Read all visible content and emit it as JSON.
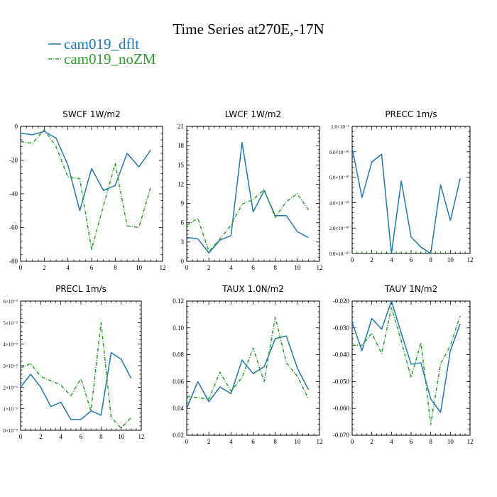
{
  "figure": {
    "title": "Time Series at270E,-17N",
    "legend": [
      {
        "label": "cam019_dflt",
        "color": "#1f77b4",
        "dash": ""
      },
      {
        "label": "cam019_noZM",
        "color": "#2ca02c",
        "dash": "5,2,1,2"
      }
    ]
  },
  "chart_data": [
    {
      "type": "line",
      "title": "SWCF  1W/m2",
      "xlim": [
        0,
        12
      ],
      "xticks": [
        0,
        2,
        4,
        6,
        8,
        10,
        12
      ],
      "ylim": [
        -80,
        0
      ],
      "yticks": [
        0,
        -20,
        -40,
        -60,
        -80
      ],
      "ytick_labels": [
        "0",
        "-20",
        "-40",
        "-60",
        "-80"
      ],
      "x": [
        0,
        1,
        2,
        3,
        4,
        5,
        6,
        7,
        8,
        9,
        10,
        11
      ],
      "series": [
        {
          "name": "cam019_dflt",
          "values": [
            -4,
            -5,
            -3,
            -7,
            -23,
            -50,
            -25,
            -38,
            -35,
            -16,
            -24,
            -14
          ]
        },
        {
          "name": "cam019_noZM",
          "values": [
            -9,
            -10,
            -2,
            -12,
            -30,
            -31,
            -73,
            -47,
            -22,
            -59,
            -60,
            -36
          ]
        }
      ]
    },
    {
      "type": "line",
      "title": "LWCF  1W/m2",
      "xlim": [
        0,
        12
      ],
      "xticks": [
        0,
        2,
        4,
        6,
        8,
        10,
        12
      ],
      "ylim": [
        0,
        21
      ],
      "yticks": [
        0,
        3,
        6,
        9,
        12,
        15,
        18,
        21
      ],
      "ytick_labels": [
        "0",
        "3",
        "6",
        "9",
        "12",
        "15",
        "18",
        "21"
      ],
      "x": [
        0,
        1,
        2,
        3,
        4,
        5,
        6,
        7,
        8,
        9,
        10,
        11
      ],
      "series": [
        {
          "name": "cam019_dflt",
          "values": [
            3.7,
            3.5,
            1.3,
            3.3,
            4.0,
            18.5,
            7.7,
            11.0,
            7.1,
            7.1,
            4.6,
            3.7
          ]
        },
        {
          "name": "cam019_noZM",
          "values": [
            5.6,
            6.7,
            1.5,
            3.5,
            5.6,
            8.9,
            9.6,
            11.2,
            6.8,
            9.3,
            10.5,
            8.0
          ]
        }
      ]
    },
    {
      "type": "line",
      "title": "PRECC   1m/s",
      "xlim": [
        0,
        12
      ],
      "xticks": [
        0,
        2,
        4,
        6,
        8,
        10,
        12
      ],
      "ylim": [
        0,
        1e-09
      ],
      "yticks": [
        0,
        2e-10,
        4e-10,
        6e-10,
        8e-10,
        1e-09
      ],
      "ytick_labels": [
        "0.0×10⁻¹⁰",
        "2.0×10⁻¹⁰",
        "4.0×10⁻¹⁰",
        "6.0×10⁻¹⁰",
        "8.0×10⁻¹⁰",
        "1.0×10⁻⁹"
      ],
      "x": [
        0,
        1,
        2,
        3,
        4,
        5,
        6,
        7,
        8,
        9,
        10,
        11
      ],
      "series": [
        {
          "name": "cam019_dflt",
          "values": [
            8.3e-10,
            4.4e-10,
            7.2e-10,
            7.8e-10,
            0,
            5.7e-10,
            1.3e-10,
            5e-11,
            0,
            5.4e-10,
            2.6e-10,
            5.9e-10
          ]
        },
        {
          "name": "cam019_noZM",
          "values": [
            0,
            0,
            0,
            0,
            0,
            0,
            0,
            0,
            0,
            0,
            0,
            0
          ]
        }
      ]
    },
    {
      "type": "line",
      "title": "PRECL   1m/s",
      "xlim": [
        0,
        12
      ],
      "xticks": [
        0,
        2,
        4,
        6,
        8,
        10,
        12
      ],
      "ylim": [
        0,
        6
      ],
      "yticks": [
        0,
        1,
        2,
        3,
        4,
        5,
        6
      ],
      "ytick_labels": [
        "0×10⁻⁹",
        "1×10⁻⁹",
        "2×10⁻⁹",
        "3×10⁻⁹",
        "4×10⁻⁹",
        "5×10⁻⁹",
        "6×10⁻⁹"
      ],
      "x": [
        0,
        1,
        2,
        3,
        4,
        5,
        6,
        7,
        8,
        9,
        10,
        11
      ],
      "series": [
        {
          "name": "cam019_dflt",
          "values": [
            2.0,
            2.6,
            2.0,
            1.1,
            1.3,
            0.5,
            0.5,
            0.9,
            0.7,
            3.6,
            3.3,
            2.4
          ]
        },
        {
          "name": "cam019_noZM",
          "values": [
            2.9,
            3.1,
            2.5,
            2.3,
            2.1,
            1.6,
            2.4,
            0.9,
            5.0,
            0.6,
            0.1,
            0.6
          ]
        }
      ]
    },
    {
      "type": "line",
      "title": "TAUX   1.0N/m2",
      "xlim": [
        0,
        12
      ],
      "xticks": [
        0,
        2,
        4,
        6,
        8,
        10,
        12
      ],
      "ylim": [
        0.02,
        0.12
      ],
      "yticks": [
        0.02,
        0.04,
        0.06,
        0.08,
        0.1,
        0.12
      ],
      "ytick_labels": [
        "0.02",
        "0.04",
        "0.06",
        "0.08",
        "0.10",
        "0.12"
      ],
      "x": [
        0,
        1,
        2,
        3,
        4,
        5,
        6,
        7,
        8,
        9,
        10,
        11
      ],
      "series": [
        {
          "name": "cam019_dflt",
          "values": [
            0.04,
            0.06,
            0.045,
            0.056,
            0.051,
            0.076,
            0.066,
            0.071,
            0.092,
            0.094,
            0.07,
            0.054
          ]
        },
        {
          "name": "cam019_noZM",
          "values": [
            0.049,
            0.048,
            0.047,
            0.067,
            0.053,
            0.063,
            0.085,
            0.06,
            0.108,
            0.074,
            0.064,
            0.047
          ]
        }
      ]
    },
    {
      "type": "line",
      "title": "TAUY   1N/m2",
      "xlim": [
        0,
        12
      ],
      "xticks": [
        0,
        2,
        4,
        6,
        8,
        10,
        12
      ],
      "ylim": [
        -0.07,
        -0.02
      ],
      "yticks": [
        -0.02,
        -0.03,
        -0.04,
        -0.05,
        -0.06,
        -0.07
      ],
      "ytick_labels": [
        "-0.020",
        "-0.030",
        "-0.040",
        "-0.050",
        "-0.060",
        "-0.070"
      ],
      "x": [
        0,
        1,
        2,
        3,
        4,
        5,
        6,
        7,
        8,
        9,
        10,
        11
      ],
      "series": [
        {
          "name": "cam019_dflt",
          "values": [
            -0.028,
            -0.0385,
            -0.0265,
            -0.0305,
            -0.02,
            -0.032,
            -0.0435,
            -0.043,
            -0.0565,
            -0.0615,
            -0.0385,
            -0.0285
          ]
        },
        {
          "name": "cam019_noZM",
          "values": [
            -0.0365,
            -0.0365,
            -0.032,
            -0.0395,
            -0.0225,
            -0.035,
            -0.0485,
            -0.0355,
            -0.066,
            -0.0435,
            -0.0365,
            -0.0255
          ]
        }
      ]
    }
  ]
}
